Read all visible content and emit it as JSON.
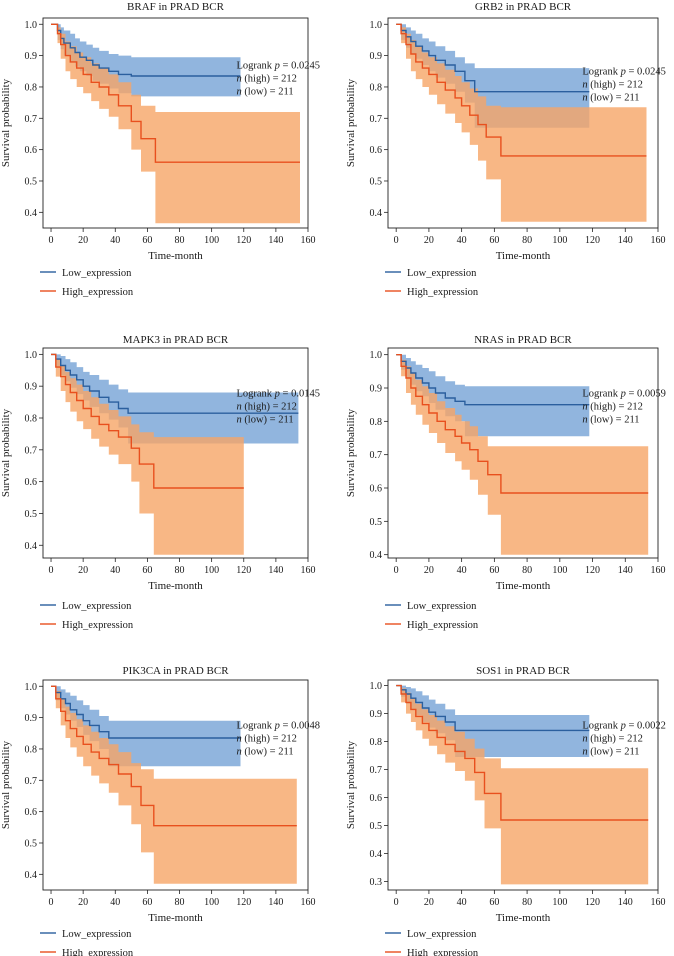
{
  "figure": {
    "legend_labels": [
      "Low_expression",
      "High_expression"
    ],
    "series_colors": {
      "low": "#2b5f9e",
      "high": "#e8501e"
    },
    "band_colors": {
      "low": "#7ea8d8",
      "high": "#f6a567"
    }
  },
  "chart_data": [
    {
      "type": "line",
      "title": "BRAF in PRAD BCR",
      "xlabel": "Time-month",
      "ylabel": "Survival probability",
      "xlim": [
        -5,
        160
      ],
      "ylim": [
        0.35,
        1.02
      ],
      "xticks": [
        0,
        20,
        40,
        60,
        80,
        100,
        120,
        140,
        160
      ],
      "yticks": [
        0.4,
        0.5,
        0.6,
        0.7,
        0.8,
        0.9,
        1.0
      ],
      "annotation": {
        "logrank_p": "0.0245",
        "n_high": "212",
        "n_low": "211"
      },
      "legend": [
        "Low_expression",
        "High_expression"
      ],
      "series": [
        {
          "name": "Low_expression",
          "x": [
            0,
            4,
            6,
            8,
            12,
            15,
            18,
            22,
            26,
            30,
            36,
            42,
            50,
            118
          ],
          "y": [
            1.0,
            0.98,
            0.955,
            0.94,
            0.925,
            0.91,
            0.895,
            0.885,
            0.87,
            0.86,
            0.85,
            0.84,
            0.835,
            0.835
          ],
          "ci_upper": [
            1.0,
            1.0,
            0.99,
            0.98,
            0.97,
            0.955,
            0.945,
            0.935,
            0.925,
            0.915,
            0.905,
            0.9,
            0.895,
            0.895
          ],
          "ci_lower": [
            1.0,
            0.95,
            0.92,
            0.9,
            0.88,
            0.865,
            0.85,
            0.835,
            0.82,
            0.81,
            0.795,
            0.78,
            0.77,
            0.77
          ]
        },
        {
          "name": "High_expression",
          "x": [
            0,
            4,
            6,
            9,
            12,
            16,
            20,
            25,
            30,
            36,
            42,
            50,
            56,
            65,
            155
          ],
          "y": [
            1.0,
            0.97,
            0.935,
            0.9,
            0.88,
            0.86,
            0.84,
            0.815,
            0.8,
            0.775,
            0.74,
            0.69,
            0.635,
            0.56,
            0.56
          ],
          "ci_upper": [
            1.0,
            0.99,
            0.97,
            0.945,
            0.93,
            0.91,
            0.895,
            0.875,
            0.86,
            0.84,
            0.815,
            0.775,
            0.74,
            0.72,
            0.72
          ],
          "ci_lower": [
            1.0,
            0.94,
            0.89,
            0.85,
            0.825,
            0.8,
            0.78,
            0.755,
            0.73,
            0.705,
            0.665,
            0.6,
            0.53,
            0.365,
            0.365
          ]
        }
      ]
    },
    {
      "type": "line",
      "title": "GRB2 in PRAD BCR",
      "xlabel": "Time-month",
      "ylabel": "Survival probability",
      "xlim": [
        -5,
        160
      ],
      "ylim": [
        0.35,
        1.02
      ],
      "xticks": [
        0,
        20,
        40,
        60,
        80,
        100,
        120,
        140,
        160
      ],
      "yticks": [
        0.4,
        0.5,
        0.6,
        0.7,
        0.8,
        0.9,
        1.0
      ],
      "annotation": {
        "logrank_p": "0.0245",
        "n_high": "212",
        "n_low": "211"
      },
      "legend": [
        "Low_expression",
        "High_expression"
      ],
      "series": [
        {
          "name": "Low_expression",
          "x": [
            0,
            3,
            6,
            9,
            12,
            16,
            20,
            24,
            30,
            36,
            42,
            48,
            118
          ],
          "y": [
            1.0,
            0.98,
            0.96,
            0.945,
            0.93,
            0.915,
            0.9,
            0.885,
            0.87,
            0.85,
            0.82,
            0.785,
            0.785
          ],
          "ci_upper": [
            1.0,
            1.0,
            0.99,
            0.98,
            0.97,
            0.955,
            0.945,
            0.93,
            0.915,
            0.895,
            0.875,
            0.86,
            0.86
          ],
          "ci_lower": [
            1.0,
            0.95,
            0.925,
            0.905,
            0.89,
            0.87,
            0.85,
            0.83,
            0.81,
            0.785,
            0.75,
            0.67,
            0.67
          ]
        },
        {
          "name": "High_expression",
          "x": [
            0,
            3,
            6,
            9,
            12,
            16,
            20,
            25,
            30,
            36,
            40,
            45,
            50,
            55,
            64,
            153
          ],
          "y": [
            1.0,
            0.97,
            0.935,
            0.905,
            0.88,
            0.86,
            0.84,
            0.815,
            0.79,
            0.765,
            0.74,
            0.71,
            0.68,
            0.64,
            0.58,
            0.58
          ],
          "ci_upper": [
            1.0,
            0.99,
            0.97,
            0.95,
            0.93,
            0.91,
            0.895,
            0.875,
            0.855,
            0.835,
            0.815,
            0.795,
            0.77,
            0.74,
            0.735,
            0.735
          ],
          "ci_lower": [
            1.0,
            0.94,
            0.89,
            0.85,
            0.825,
            0.8,
            0.775,
            0.745,
            0.715,
            0.685,
            0.655,
            0.615,
            0.565,
            0.505,
            0.37,
            0.37
          ]
        }
      ]
    },
    {
      "type": "line",
      "title": "MAPK3 in PRAD BCR",
      "xlabel": "Time-month",
      "ylabel": "Survival probability",
      "xlim": [
        -5,
        160
      ],
      "ylim": [
        0.36,
        1.02
      ],
      "xticks": [
        0,
        20,
        40,
        60,
        80,
        100,
        120,
        140,
        160
      ],
      "yticks": [
        0.4,
        0.5,
        0.6,
        0.7,
        0.8,
        0.9,
        1.0
      ],
      "annotation": {
        "logrank_p": "0.0145",
        "n_high": "212",
        "n_low": "211"
      },
      "legend": [
        "Low_expression",
        "High_expression"
      ],
      "series": [
        {
          "name": "Low_expression",
          "x": [
            0,
            3,
            6,
            9,
            12,
            16,
            20,
            24,
            30,
            36,
            42,
            48,
            154
          ],
          "y": [
            1.0,
            0.985,
            0.965,
            0.95,
            0.935,
            0.92,
            0.9,
            0.885,
            0.865,
            0.85,
            0.83,
            0.815,
            0.815
          ],
          "ci_upper": [
            1.0,
            1.0,
            0.995,
            0.985,
            0.975,
            0.96,
            0.945,
            0.935,
            0.92,
            0.905,
            0.89,
            0.88,
            0.88
          ],
          "ci_lower": [
            1.0,
            0.96,
            0.935,
            0.915,
            0.895,
            0.875,
            0.855,
            0.835,
            0.815,
            0.795,
            0.77,
            0.72,
            0.72
          ]
        },
        {
          "name": "High_expression",
          "x": [
            0,
            3,
            6,
            9,
            12,
            16,
            20,
            25,
            30,
            36,
            42,
            50,
            55,
            64,
            120
          ],
          "y": [
            1.0,
            0.96,
            0.93,
            0.905,
            0.88,
            0.855,
            0.83,
            0.805,
            0.78,
            0.76,
            0.74,
            0.705,
            0.655,
            0.58,
            0.58
          ],
          "ci_upper": [
            1.0,
            0.985,
            0.965,
            0.945,
            0.925,
            0.905,
            0.885,
            0.865,
            0.845,
            0.825,
            0.805,
            0.78,
            0.755,
            0.74,
            0.74
          ],
          "ci_lower": [
            1.0,
            0.93,
            0.885,
            0.85,
            0.82,
            0.79,
            0.765,
            0.735,
            0.71,
            0.685,
            0.655,
            0.6,
            0.5,
            0.37,
            0.37
          ]
        }
      ]
    },
    {
      "type": "line",
      "title": "NRAS in PRAD BCR",
      "xlabel": "Time-month",
      "ylabel": "Survival probability",
      "xlim": [
        -5,
        160
      ],
      "ylim": [
        0.39,
        1.02
      ],
      "xticks": [
        0,
        20,
        40,
        60,
        80,
        100,
        120,
        140,
        160
      ],
      "yticks": [
        0.4,
        0.5,
        0.6,
        0.7,
        0.8,
        0.9,
        1.0
      ],
      "annotation": {
        "logrank_p": "0.0059",
        "n_high": "212",
        "n_low": "211"
      },
      "legend": [
        "Low_expression",
        "High_expression"
      ],
      "series": [
        {
          "name": "Low_expression",
          "x": [
            0,
            3,
            6,
            9,
            12,
            16,
            20,
            24,
            30,
            36,
            42,
            118
          ],
          "y": [
            1.0,
            0.98,
            0.96,
            0.945,
            0.93,
            0.915,
            0.9,
            0.885,
            0.87,
            0.86,
            0.85,
            0.85
          ],
          "ci_upper": [
            1.0,
            1.0,
            0.99,
            0.98,
            0.97,
            0.96,
            0.95,
            0.935,
            0.92,
            0.91,
            0.905,
            0.905
          ],
          "ci_lower": [
            1.0,
            0.955,
            0.93,
            0.91,
            0.89,
            0.875,
            0.855,
            0.835,
            0.815,
            0.8,
            0.755,
            0.755
          ]
        },
        {
          "name": "High_expression",
          "x": [
            0,
            3,
            6,
            9,
            12,
            16,
            20,
            25,
            30,
            36,
            40,
            45,
            50,
            56,
            64,
            154
          ],
          "y": [
            1.0,
            0.965,
            0.93,
            0.9,
            0.875,
            0.85,
            0.825,
            0.8,
            0.775,
            0.755,
            0.735,
            0.715,
            0.68,
            0.64,
            0.585,
            0.585
          ],
          "ci_upper": [
            1.0,
            0.985,
            0.965,
            0.945,
            0.925,
            0.905,
            0.885,
            0.86,
            0.84,
            0.82,
            0.8,
            0.785,
            0.755,
            0.725,
            0.725,
            0.725
          ],
          "ci_lower": [
            1.0,
            0.935,
            0.885,
            0.85,
            0.82,
            0.79,
            0.765,
            0.735,
            0.705,
            0.68,
            0.655,
            0.625,
            0.58,
            0.52,
            0.4,
            0.4
          ]
        }
      ]
    },
    {
      "type": "line",
      "title": "PIK3CA in PRAD BCR",
      "xlabel": "Time-month",
      "ylabel": "Survival probability",
      "xlim": [
        -5,
        160
      ],
      "ylim": [
        0.35,
        1.02
      ],
      "xticks": [
        0,
        20,
        40,
        60,
        80,
        100,
        120,
        140,
        160
      ],
      "yticks": [
        0.4,
        0.5,
        0.6,
        0.7,
        0.8,
        0.9,
        1.0
      ],
      "annotation": {
        "logrank_p": "0.0048",
        "n_high": "212",
        "n_low": "211"
      },
      "legend": [
        "Low_expression",
        "High_expression"
      ],
      "series": [
        {
          "name": "Low_expression",
          "x": [
            0,
            3,
            6,
            9,
            12,
            16,
            20,
            24,
            30,
            36,
            118
          ],
          "y": [
            1.0,
            0.98,
            0.96,
            0.945,
            0.925,
            0.91,
            0.89,
            0.875,
            0.855,
            0.835,
            0.835
          ],
          "ci_upper": [
            1.0,
            1.0,
            0.99,
            0.98,
            0.97,
            0.955,
            0.94,
            0.925,
            0.905,
            0.89,
            0.89
          ],
          "ci_lower": [
            1.0,
            0.955,
            0.93,
            0.91,
            0.89,
            0.87,
            0.845,
            0.825,
            0.8,
            0.745,
            0.745
          ]
        },
        {
          "name": "High_expression",
          "x": [
            0,
            3,
            6,
            9,
            12,
            16,
            20,
            25,
            30,
            36,
            42,
            50,
            56,
            64,
            153
          ],
          "y": [
            1.0,
            0.96,
            0.92,
            0.89,
            0.865,
            0.84,
            0.815,
            0.79,
            0.77,
            0.75,
            0.72,
            0.68,
            0.62,
            0.555,
            0.555
          ],
          "ci_upper": [
            1.0,
            0.985,
            0.96,
            0.935,
            0.915,
            0.895,
            0.875,
            0.855,
            0.835,
            0.815,
            0.79,
            0.755,
            0.735,
            0.705,
            0.705
          ],
          "ci_lower": [
            1.0,
            0.93,
            0.875,
            0.835,
            0.805,
            0.775,
            0.745,
            0.715,
            0.69,
            0.66,
            0.62,
            0.56,
            0.47,
            0.37,
            0.37
          ]
        }
      ]
    },
    {
      "type": "line",
      "title": "SOS1 in PRAD BCR",
      "xlabel": "Time-month",
      "ylabel": "Survival probability",
      "xlim": [
        -5,
        160
      ],
      "ylim": [
        0.27,
        1.02
      ],
      "xticks": [
        0,
        20,
        40,
        60,
        80,
        100,
        120,
        140,
        160
      ],
      "yticks": [
        0.3,
        0.4,
        0.5,
        0.6,
        0.7,
        0.8,
        0.9,
        1.0
      ],
      "annotation": {
        "logrank_p": "0.0022",
        "n_high": "212",
        "n_low": "211"
      },
      "legend": [
        "Low_expression",
        "High_expression"
      ],
      "series": [
        {
          "name": "Low_expression",
          "x": [
            0,
            3,
            6,
            9,
            12,
            16,
            20,
            24,
            30,
            36,
            118
          ],
          "y": [
            1.0,
            0.985,
            0.97,
            0.955,
            0.94,
            0.92,
            0.905,
            0.89,
            0.87,
            0.84,
            0.84
          ],
          "ci_upper": [
            1.0,
            1.0,
            0.995,
            0.99,
            0.98,
            0.965,
            0.95,
            0.935,
            0.915,
            0.895,
            0.895
          ],
          "ci_lower": [
            1.0,
            0.96,
            0.935,
            0.915,
            0.895,
            0.87,
            0.85,
            0.83,
            0.805,
            0.745,
            0.745
          ]
        },
        {
          "name": "High_expression",
          "x": [
            0,
            3,
            6,
            9,
            12,
            16,
            20,
            25,
            30,
            36,
            42,
            48,
            54,
            64,
            154
          ],
          "y": [
            1.0,
            0.97,
            0.94,
            0.915,
            0.89,
            0.865,
            0.84,
            0.815,
            0.79,
            0.765,
            0.74,
            0.69,
            0.615,
            0.52,
            0.52
          ],
          "ci_upper": [
            1.0,
            0.99,
            0.975,
            0.955,
            0.935,
            0.915,
            0.895,
            0.875,
            0.855,
            0.835,
            0.81,
            0.775,
            0.74,
            0.705,
            0.705
          ],
          "ci_lower": [
            1.0,
            0.94,
            0.9,
            0.87,
            0.84,
            0.81,
            0.785,
            0.755,
            0.725,
            0.695,
            0.66,
            0.59,
            0.49,
            0.29,
            0.29
          ]
        }
      ]
    }
  ]
}
